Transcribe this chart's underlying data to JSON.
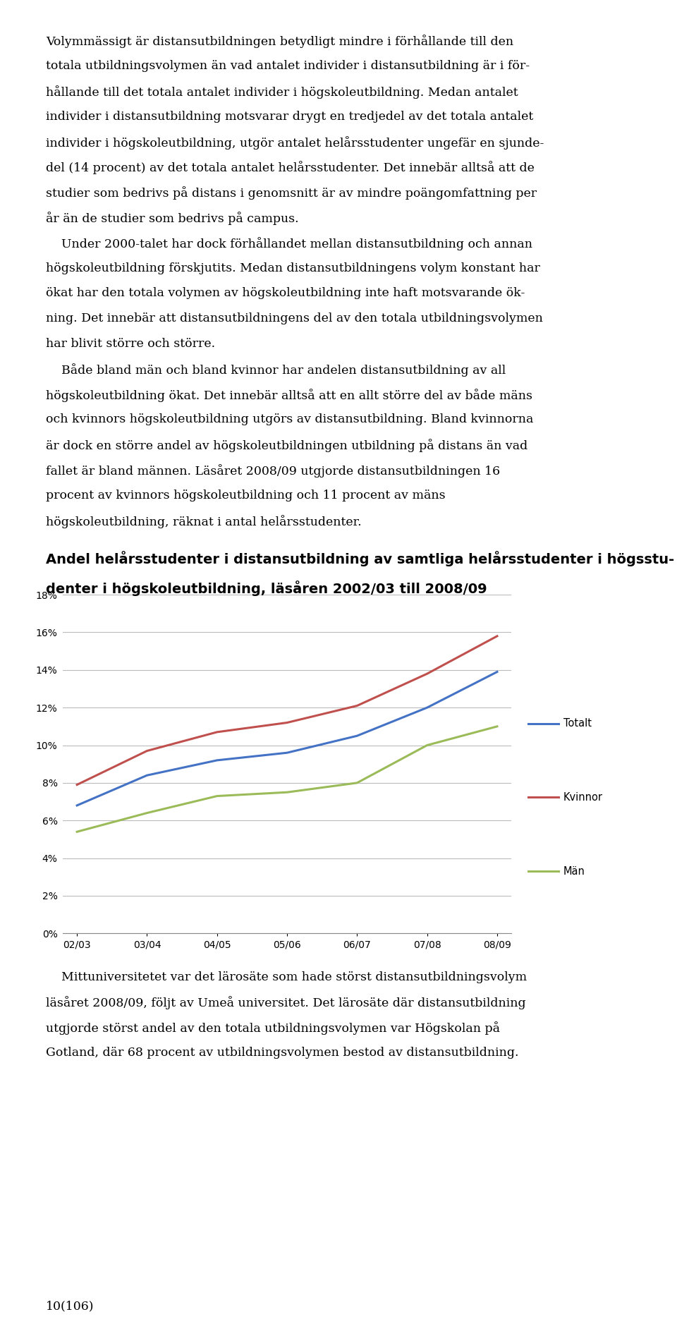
{
  "x_labels": [
    "02/03",
    "03/04",
    "04/05",
    "05/06",
    "06/07",
    "07/08",
    "08/09"
  ],
  "totalt": [
    0.068,
    0.084,
    0.092,
    0.096,
    0.105,
    0.12,
    0.139
  ],
  "kvinnor": [
    0.079,
    0.097,
    0.107,
    0.112,
    0.121,
    0.138,
    0.158
  ],
  "man": [
    0.054,
    0.064,
    0.073,
    0.075,
    0.08,
    0.1,
    0.11
  ],
  "color_totalt": "#4472C4",
  "color_kvinnor": "#C0504D",
  "color_man": "#9BBB59",
  "y_min": 0.0,
  "y_max": 0.18,
  "y_ticks": [
    0.0,
    0.02,
    0.04,
    0.06,
    0.08,
    0.1,
    0.12,
    0.14,
    0.16,
    0.18
  ],
  "legend_labels": [
    "Totalt",
    "Kvinnor",
    "Män"
  ],
  "body_lines": [
    "Volymmässigt är distansutbildningen betydligt mindre i förhållande till den",
    "totala utbildningsvolymen än vad antalet individer i distansutbildning är i för-",
    "hållande till det totala antalet individer i högskoleutbildning. Medan antalet",
    "individer i distansutbildning motsvarar drygt en tredjedel av det totala antalet",
    "individer i högskoleutbildning, utgör antalet helårsstudenter ungefär en sjunde-",
    "del (14 procent) av det totala antalet helårsstudenter. Det innebär alltså att de",
    "studier som bedrivs på distans i genomsnitt är av mindre poängomfattning per",
    "år än de studier som bedrivs på campus.",
    "    Under 2000-talet har dock förhållandet mellan distansutbildning och annan",
    "högskoleutbildning förskjutits. Medan distansutbildningens volym konstant har",
    "ökat har den totala volymen av högskoleutbildning inte haft motsvarande ök-",
    "ning. Det innebär att distansutbildningens del av den totala utbildningsvolymen",
    "har blivit större och större.",
    "    Både bland män och bland kvinnor har andelen distansutbildning av all",
    "högskoleutbildning ökat. Det innebär alltså att en allt större del av både mäns",
    "och kvinnors högskoleutbildning utgörs av distansutbildning. Bland kvinnorna",
    "är dock en större andel av högskoleutbildningen utbildning på distans än vad",
    "fallet är bland männen. Läsåret 2008/09 utgjorde distansutbildningen 16",
    "procent av kvinnors högskoleutbildning och 11 procent av mäns",
    "högskoleutbildning, räknat i antal helårsstudenter."
  ],
  "chart_title_line1": "Andel helårsstudenter i distansutbildning av samtliga helårsstudenter i högsstu-",
  "chart_title_line2": "denter i högskoleutbildning, läsåren 2002/03 till 2008/09",
  "footer_lines": [
    "    Mittuniversitetet var det lärosäte som hade störst distansutbildningsvolym",
    "läsåret 2008/09, följt av Umeå universitet. Det lärosäte där distansutbildning",
    "utgjorde störst andel av den totala utbildningsvolymen var Högskolan på",
    "Gotland, där 68 procent av utbildningsvolymen bestod av distansutbildning."
  ],
  "page_number": "10(106)",
  "background_color": "#FFFFFF"
}
